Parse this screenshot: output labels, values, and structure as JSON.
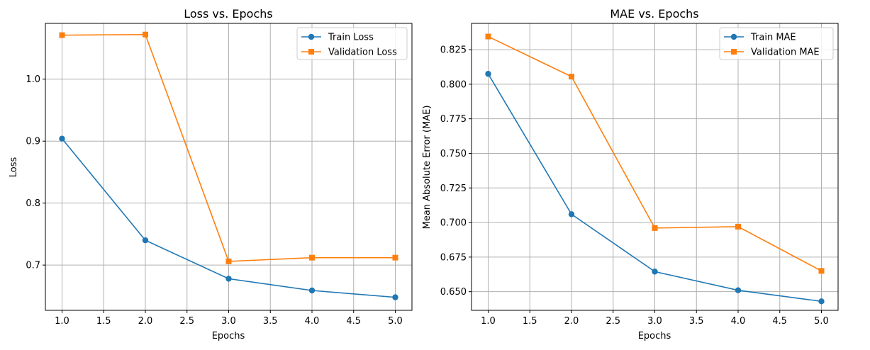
{
  "chart_data": [
    {
      "type": "line",
      "title": "Loss vs. Epochs",
      "xlabel": "Epochs",
      "ylabel": "Loss",
      "x": [
        1.0,
        2.0,
        3.0,
        4.0,
        5.0
      ],
      "xlim": [
        0.8,
        5.2
      ],
      "ylim": [
        0.627,
        1.09
      ],
      "xticks": [
        1.0,
        1.5,
        2.0,
        2.5,
        3.0,
        3.5,
        4.0,
        4.5,
        5.0
      ],
      "xtick_labels": [
        "1.0",
        "1.5",
        "2.0",
        "2.5",
        "3.0",
        "3.5",
        "4.0",
        "4.5",
        "5.0"
      ],
      "yticks": [
        0.7,
        0.8,
        0.9,
        1.0
      ],
      "ytick_labels": [
        "0.7",
        "0.8",
        "0.9",
        "1.0"
      ],
      "grid": true,
      "legend_position": "top-right",
      "series": [
        {
          "name": "Train Loss",
          "values": [
            0.904,
            0.74,
            0.678,
            0.659,
            0.648
          ],
          "color": "#1f77b4",
          "marker": "circle"
        },
        {
          "name": "Validation Loss",
          "values": [
            1.071,
            1.072,
            0.706,
            0.712,
            0.712
          ],
          "color": "#ff7f0e",
          "marker": "square"
        }
      ]
    },
    {
      "type": "line",
      "title": "MAE vs. Epochs",
      "xlabel": "Epochs",
      "ylabel": "Mean Absolute Error (MAE)",
      "x": [
        1.0,
        2.0,
        3.0,
        4.0,
        5.0
      ],
      "xlim": [
        0.8,
        5.2
      ],
      "ylim": [
        0.6365,
        0.844
      ],
      "xticks": [
        1.0,
        1.5,
        2.0,
        2.5,
        3.0,
        3.5,
        4.0,
        4.5,
        5.0
      ],
      "xtick_labels": [
        "1.0",
        "1.5",
        "2.0",
        "2.5",
        "3.0",
        "3.5",
        "4.0",
        "4.5",
        "5.0"
      ],
      "yticks": [
        0.65,
        0.675,
        0.7,
        0.725,
        0.75,
        0.775,
        0.8,
        0.825
      ],
      "ytick_labels": [
        "0.650",
        "0.675",
        "0.700",
        "0.725",
        "0.750",
        "0.775",
        "0.800",
        "0.825"
      ],
      "grid": true,
      "legend_position": "top-right",
      "series": [
        {
          "name": "Train MAE",
          "values": [
            0.8075,
            0.706,
            0.6645,
            0.651,
            0.643
          ],
          "color": "#1f77b4",
          "marker": "circle"
        },
        {
          "name": "Validation MAE",
          "values": [
            0.8345,
            0.8055,
            0.696,
            0.697,
            0.665
          ],
          "color": "#ff7f0e",
          "marker": "square"
        }
      ]
    }
  ]
}
